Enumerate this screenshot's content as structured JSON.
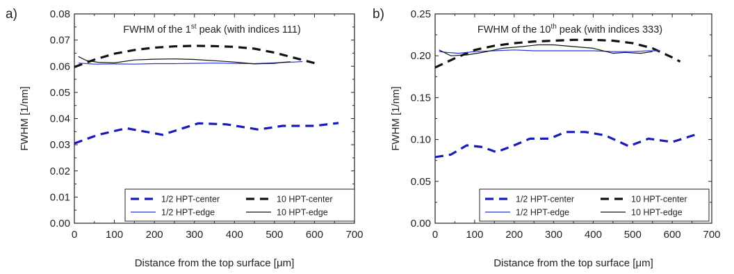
{
  "chart_data": [
    {
      "type": "line",
      "panel_label": "a)",
      "title": {
        "pre": "FWHM of the 1",
        "sup": "st",
        "post": " peak (with indices 111)"
      },
      "xlabel": "Distance from the top surface [μm]",
      "ylabel": "FWHM [1/nm]",
      "xlim": [
        0,
        700
      ],
      "ylim": [
        0,
        0.08
      ],
      "grid": false,
      "legend_position": "bottom",
      "xticks": [
        0,
        100,
        200,
        300,
        400,
        500,
        600,
        700
      ],
      "yticks": [
        0.0,
        0.01,
        0.02,
        0.03,
        0.04,
        0.05,
        0.06,
        0.07,
        0.08
      ],
      "xtick_labels": [
        "0",
        "100",
        "200",
        "300",
        "400",
        "500",
        "600",
        "700"
      ],
      "ytick_labels": [
        "0.00",
        "0.01",
        "0.02",
        "0.03",
        "0.04",
        "0.05",
        "0.06",
        "0.07",
        "0.08"
      ],
      "series": [
        {
          "name": "1/2 HPT-center",
          "color": "#1a1ab8",
          "dash": "dashed",
          "width": 3.2,
          "x": [
            0,
            60,
            130,
            220,
            310,
            380,
            460,
            520,
            600,
            660
          ],
          "y": [
            0.0305,
            0.0338,
            0.0363,
            0.0338,
            0.0382,
            0.0378,
            0.0358,
            0.0372,
            0.0372,
            0.0383
          ]
        },
        {
          "name": "10 HPT-center",
          "color": "#111111",
          "dash": "dashed",
          "width": 3.2,
          "x": [
            0,
            50,
            100,
            150,
            200,
            250,
            300,
            350,
            400,
            450,
            500,
            550,
            600
          ],
          "y": [
            0.0597,
            0.0625,
            0.0648,
            0.0662,
            0.0671,
            0.0676,
            0.0678,
            0.0677,
            0.0674,
            0.0667,
            0.0652,
            0.0632,
            0.0612
          ]
        },
        {
          "name": "1/2 HPT-edge",
          "color": "#2233dd",
          "dash": "solid",
          "width": 1.2,
          "x": [
            10,
            50,
            100,
            150,
            200,
            250,
            300,
            350,
            400,
            450,
            500,
            550,
            570
          ],
          "y": [
            0.0612,
            0.0608,
            0.0609,
            0.0608,
            0.061,
            0.061,
            0.0611,
            0.0612,
            0.0611,
            0.061,
            0.0613,
            0.0616,
            0.0618
          ]
        },
        {
          "name": "10 HPT-edge",
          "color": "#111111",
          "dash": "solid",
          "width": 1.2,
          "x": [
            10,
            30,
            60,
            100,
            150,
            200,
            250,
            300,
            350,
            400,
            450,
            500,
            520,
            540
          ],
          "y": [
            0.0637,
            0.0622,
            0.0615,
            0.0613,
            0.0624,
            0.0627,
            0.0628,
            0.0626,
            0.0621,
            0.0616,
            0.0609,
            0.0611,
            0.0615,
            0.0617
          ]
        }
      ]
    },
    {
      "type": "line",
      "panel_label": "b)",
      "title": {
        "pre": "FWHM of the 10",
        "sup": "th",
        "post": " peak (with indices 333)"
      },
      "xlabel": "Distance from the top surface [μm]",
      "ylabel": "FWHM [1/nm]",
      "xlim": [
        0,
        700
      ],
      "ylim": [
        0,
        0.25
      ],
      "grid": false,
      "legend_position": "bottom",
      "xticks": [
        0,
        100,
        200,
        300,
        400,
        500,
        600,
        700
      ],
      "yticks": [
        0.0,
        0.05,
        0.1,
        0.15,
        0.2,
        0.25
      ],
      "xtick_labels": [
        "0",
        "100",
        "200",
        "300",
        "400",
        "500",
        "600",
        "700"
      ],
      "ytick_labels": [
        "0.00",
        "0.05",
        "0.10",
        "0.15",
        "0.20",
        "0.25"
      ],
      "series": [
        {
          "name": "1/2 HPT-center",
          "color": "#1a1ab8",
          "dash": "dashed",
          "width": 3.2,
          "x": [
            0,
            40,
            80,
            120,
            155,
            200,
            240,
            290,
            330,
            380,
            430,
            490,
            540,
            600,
            660
          ],
          "y": [
            0.079,
            0.082,
            0.093,
            0.091,
            0.085,
            0.093,
            0.101,
            0.101,
            0.109,
            0.109,
            0.105,
            0.092,
            0.101,
            0.097,
            0.106
          ]
        },
        {
          "name": "10 HPT-center",
          "color": "#111111",
          "dash": "dashed",
          "width": 3.2,
          "x": [
            0,
            50,
            100,
            150,
            200,
            250,
            300,
            350,
            400,
            450,
            500,
            550,
            600,
            620
          ],
          "y": [
            0.186,
            0.197,
            0.207,
            0.212,
            0.215,
            0.217,
            0.218,
            0.219,
            0.219,
            0.218,
            0.215,
            0.209,
            0.198,
            0.193
          ]
        },
        {
          "name": "1/2 HPT-edge",
          "color": "#2233dd",
          "dash": "solid",
          "width": 1.2,
          "x": [
            10,
            30,
            60,
            100,
            150,
            200,
            250,
            300,
            350,
            400,
            450,
            500,
            540,
            570
          ],
          "y": [
            0.205,
            0.204,
            0.203,
            0.205,
            0.206,
            0.207,
            0.206,
            0.206,
            0.206,
            0.206,
            0.205,
            0.205,
            0.206,
            0.206
          ]
        },
        {
          "name": "10 HPT-edge",
          "color": "#111111",
          "dash": "solid",
          "width": 1.2,
          "x": [
            10,
            40,
            80,
            120,
            170,
            220,
            260,
            300,
            350,
            400,
            450,
            480,
            520,
            550
          ],
          "y": [
            0.207,
            0.2,
            0.201,
            0.204,
            0.209,
            0.211,
            0.213,
            0.213,
            0.211,
            0.209,
            0.203,
            0.204,
            0.203,
            0.205
          ]
        }
      ]
    }
  ]
}
